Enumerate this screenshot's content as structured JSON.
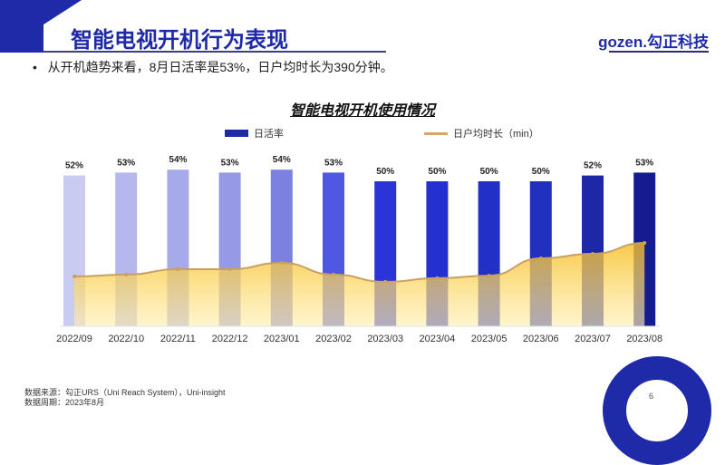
{
  "header": {
    "title": "智能电视开机行为表现",
    "logo": "gozen.勾正科技"
  },
  "bullet": "从开机趋势来看，8月日活率是53%，日户均时长为390分钟。",
  "chart_data": {
    "type": "bar+area",
    "title": "智能电视开机使用情况",
    "categories": [
      "2022/09",
      "2022/10",
      "2022/11",
      "2022/12",
      "2023/01",
      "2023/02",
      "2023/03",
      "2023/04",
      "2023/05",
      "2023/06",
      "2023/07",
      "2023/08"
    ],
    "series": [
      {
        "name": "日活率",
        "type": "bar",
        "unit": "%",
        "values": [
          52,
          53,
          54,
          53,
          54,
          53,
          50,
          50,
          50,
          50,
          52,
          53
        ],
        "labels": [
          "52%",
          "53%",
          "54%",
          "53%",
          "54%",
          "53%",
          "50%",
          "50%",
          "50%",
          "50%",
          "52%",
          "53%"
        ],
        "colors": [
          "#c9cbf0",
          "#b5b8ee",
          "#a6a9ea",
          "#9599e6",
          "#7c80e0",
          "#4f58e2",
          "#2a34d8",
          "#2430d0",
          "#2230c8",
          "#2230c0",
          "#1d27a8",
          "#141c8e"
        ]
      },
      {
        "name": "日户均时长（min）",
        "type": "area",
        "values": [
          233,
          242,
          267,
          267,
          297,
          242,
          208,
          225,
          237,
          318,
          339,
          390
        ],
        "color": "#c9a060",
        "fill": "#f6c232"
      }
    ],
    "legend_position": "top",
    "grid": false
  },
  "footer": {
    "source": "数据来源：勾正URS（Uni Reach System），Uni-insight",
    "period": "数据周期：2023年8月"
  },
  "page_number": "6"
}
